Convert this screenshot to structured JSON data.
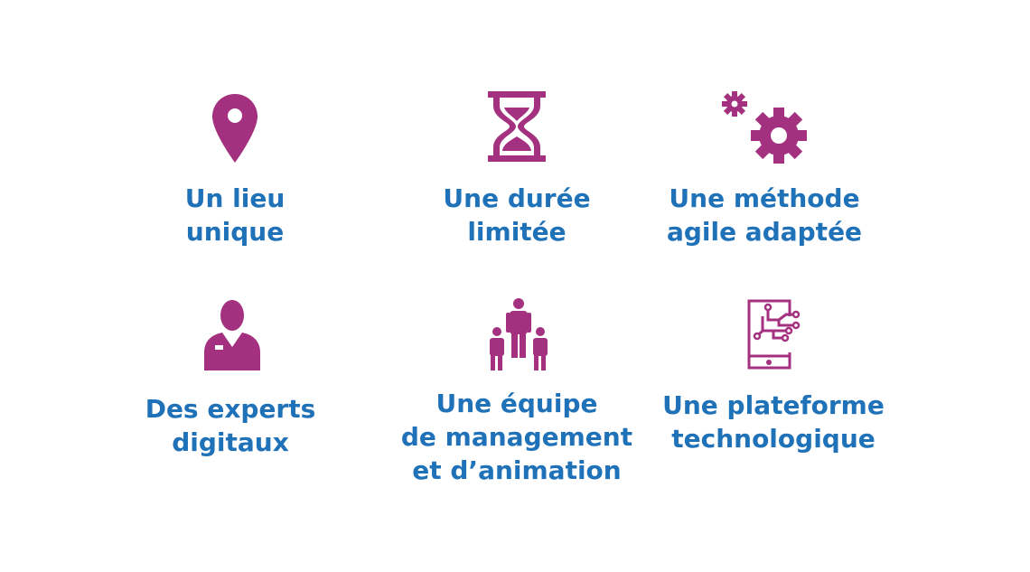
{
  "colors": {
    "icon": "#a4317f",
    "text": "#1f71b8",
    "background": "#ffffff"
  },
  "features": [
    {
      "icon": "map-pin-icon",
      "lines": [
        "Un lieu",
        "unique"
      ]
    },
    {
      "icon": "hourglass-icon",
      "lines": [
        "Une durée",
        "limitée"
      ]
    },
    {
      "icon": "gears-icon",
      "lines": [
        "Une méthode",
        "agile adaptée"
      ]
    },
    {
      "icon": "expert-person-icon",
      "lines": [
        "Des experts",
        "digitaux"
      ]
    },
    {
      "icon": "team-group-icon",
      "lines": [
        "Une équipe",
        "de management",
        "et d’animation"
      ]
    },
    {
      "icon": "tablet-circuit-icon",
      "lines": [
        "Une plateforme",
        "technologique"
      ]
    }
  ]
}
